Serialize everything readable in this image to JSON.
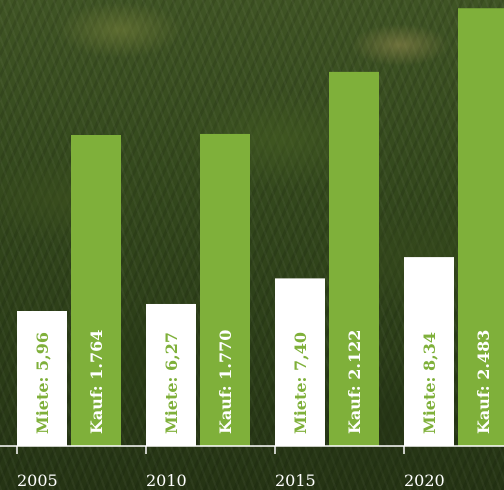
{
  "chart_data": {
    "type": "bar",
    "title": "",
    "xlabel": "",
    "ylabel": "",
    "categories": [
      "2005",
      "2010",
      "2015",
      "2020"
    ],
    "series": [
      {
        "key": "miete",
        "values": [
          5.96,
          6.27,
          7.4,
          8.34
        ],
        "labels": [
          "Miete: 5,96",
          "Miete: 6,27",
          "Miete: 7,40",
          "Miete: 8,34"
        ],
        "color": "#ffffff"
      },
      {
        "key": "kauf",
        "values": [
          1764,
          1770,
          2122,
          2483
        ],
        "labels": [
          "Kauf: 1.764",
          "Kauf: 1.770",
          "Kauf: 2.122",
          "Kauf: 2.483"
        ],
        "color": "#7fb03a"
      }
    ],
    "grid": false,
    "legend": "none"
  }
}
